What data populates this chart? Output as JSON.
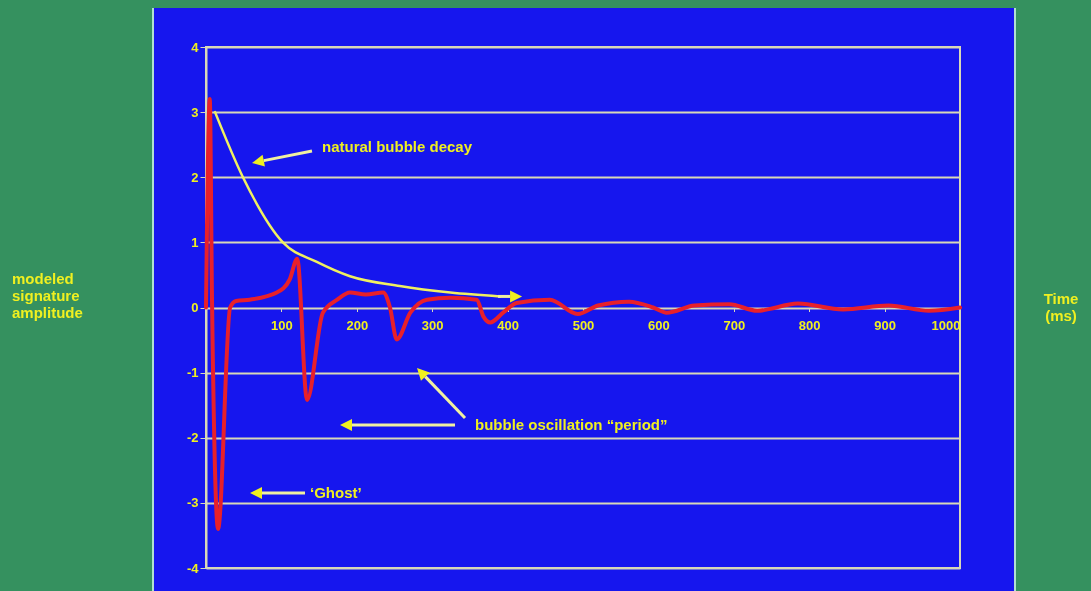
{
  "chart_data": {
    "type": "line",
    "xlim": [
      0,
      1000
    ],
    "xticks": [
      {
        "value": 0,
        "label": null
      },
      100,
      200,
      300,
      400,
      500,
      600,
      700,
      800,
      900,
      1000
    ],
    "ylim": [
      -4,
      4
    ],
    "yticks": [
      -4,
      -3,
      -2,
      -1,
      0,
      1,
      2,
      3,
      4
    ],
    "grid": "y",
    "line_style": "solid",
    "series": [
      {
        "color": "#e8202a",
        "x": [
          0,
          5,
          8,
          16,
          32,
          40,
          58,
          94,
          111,
          121,
          134,
          155,
          174,
          191,
          212,
          235,
          244,
          253,
          271,
          293,
          324,
          359,
          368,
          377,
          394,
          412,
          456,
          493,
          520,
          561,
          593,
          611,
          648,
          694,
          731,
          785,
          845,
          905,
          959,
          1000
        ],
        "values": [
          0,
          3.2,
          0.1,
          -3.4,
          0,
          0.1,
          0.12,
          0.23,
          0.43,
          0.75,
          -1.42,
          -0.08,
          0.12,
          0.23,
          0.2,
          0.23,
          0,
          -0.49,
          -0.08,
          0.12,
          0.15,
          0.12,
          -0.14,
          -0.23,
          -0.08,
          0.07,
          0.12,
          -0.1,
          0.03,
          0.09,
          0,
          -0.08,
          0.03,
          0.05,
          -0.05,
          0.06,
          -0.03,
          0.03,
          -0.05,
          0
        ]
      },
      {
        "color": "#f0f060",
        "x": [
          12,
          49,
          102,
          147,
          191,
          257,
          324,
          390
        ],
        "values": [
          3.0,
          2.0,
          1.0,
          0.7,
          0.48,
          0.33,
          0.23,
          0.17
        ]
      }
    ],
    "annotations": [
      "natural bubble decay",
      "‘Ghost’",
      "bubble oscillation “period”",
      "modeled signature amplitude",
      "Time (ms)"
    ]
  }
}
